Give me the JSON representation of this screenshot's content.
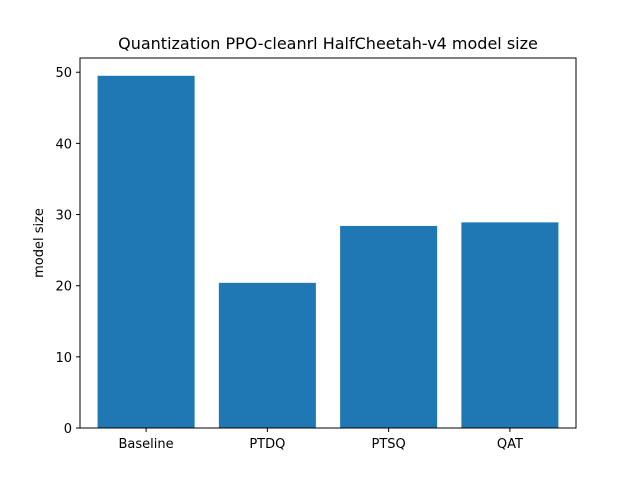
{
  "chart_data": {
    "type": "bar",
    "title": "Quantization PPO-cleanrl HalfCheetah-v4 model size",
    "xlabel": "",
    "ylabel": "model size",
    "categories": [
      "Baseline",
      "PTDQ",
      "PTSQ",
      "QAT"
    ],
    "values": [
      49.5,
      20.4,
      28.4,
      28.9
    ],
    "ylim": [
      0,
      52
    ],
    "yticks": [
      0,
      10,
      20,
      30,
      40,
      50
    ],
    "bar_color": "#1f77b4",
    "grid": false,
    "legend": "none"
  }
}
